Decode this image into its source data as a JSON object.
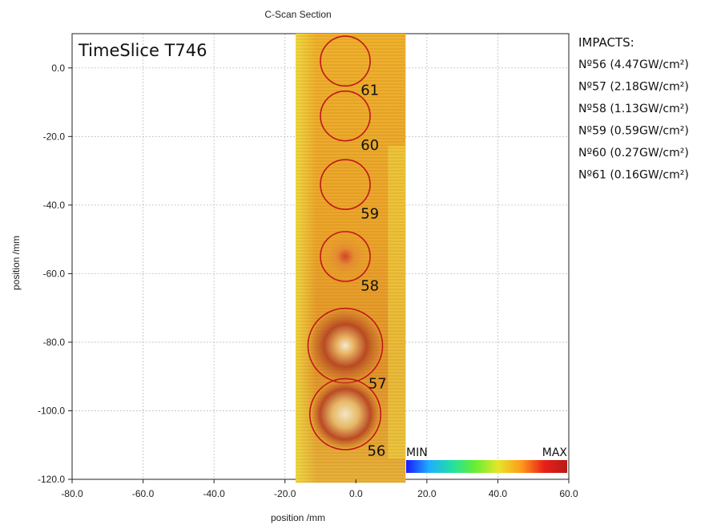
{
  "chart_data": {
    "type": "heatmap",
    "title": "C-Scan Section",
    "xlabel": "position /mm",
    "ylabel": "position /mm",
    "xlim": [
      -80,
      60
    ],
    "ylim": [
      -120,
      10
    ],
    "x_ticks": [
      "-80.0",
      "-60.0",
      "-40.0",
      "-20.0",
      "0.0",
      "20.0",
      "40.0",
      "60.0"
    ],
    "y_ticks": [
      "0.0",
      "-20.0",
      "-40.0",
      "-60.0",
      "-80.0",
      "-100.0",
      "-120.0"
    ],
    "x_tick_values": [
      -80,
      -60,
      -40,
      -20,
      0,
      20,
      40,
      60
    ],
    "y_tick_values": [
      0,
      -20,
      -40,
      -60,
      -80,
      -100,
      -120
    ],
    "grid": true,
    "annotation": "TimeSlice T746",
    "scan_extent": {
      "x": [
        -17,
        14
      ],
      "y": [
        -121,
        10
      ]
    },
    "colorbar": {
      "min_label": "MIN",
      "max_label": "MAX",
      "colors": [
        "#1a1aff",
        "#1faeff",
        "#22e0a0",
        "#66ee33",
        "#e6e62a",
        "#ff9a1a",
        "#e8201a",
        "#b81a18"
      ]
    },
    "legend": {
      "title": "IMPACTS:",
      "placement": "right",
      "entries": [
        "Nº56 (4.47GW/cm²)",
        "Nº57 (2.18GW/cm²)",
        "Nº58 (1.13GW/cm²)",
        "Nº59 (0.59GW/cm²)",
        "Nº60 (0.27GW/cm²)",
        "Nº61 (0.16GW/cm²)"
      ]
    },
    "impacts": [
      {
        "label": "61",
        "cx": -3,
        "cy": 2,
        "r": 7
      },
      {
        "label": "60",
        "cx": -3,
        "cy": -14,
        "r": 7
      },
      {
        "label": "59",
        "cx": -3,
        "cy": -34,
        "r": 7
      },
      {
        "label": "58",
        "cx": -3,
        "cy": -55,
        "r": 7
      },
      {
        "label": "57",
        "cx": -3,
        "cy": -81,
        "r": 10.5
      },
      {
        "label": "56",
        "cx": -3,
        "cy": -101,
        "r": 10
      }
    ]
  }
}
